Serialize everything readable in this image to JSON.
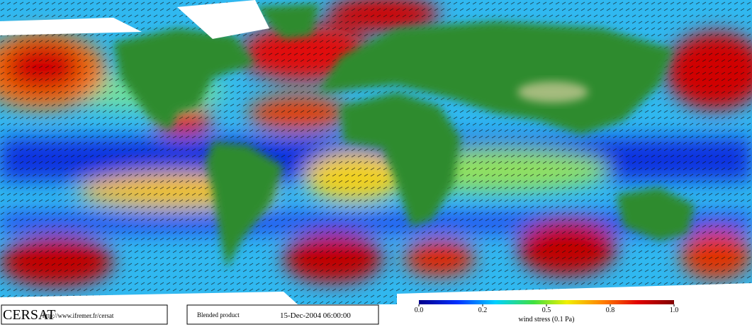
{
  "branding": {
    "logo": "CERSAT",
    "url": "http://www.ifremer.fr/cersat"
  },
  "product": {
    "name": "Blended product",
    "timestamp": "15-Dec-2004 06:00:00"
  },
  "legend": {
    "title": "wind stress (0.1 Pa)",
    "ticks": [
      {
        "value": 0,
        "label": "0.0"
      },
      {
        "value": 0.2,
        "label": "0.2"
      },
      {
        "value": 0.5,
        "label": "0.5"
      },
      {
        "value": 0.8,
        "label": "0.8"
      },
      {
        "value": 1,
        "label": "1.0"
      }
    ]
  }
}
